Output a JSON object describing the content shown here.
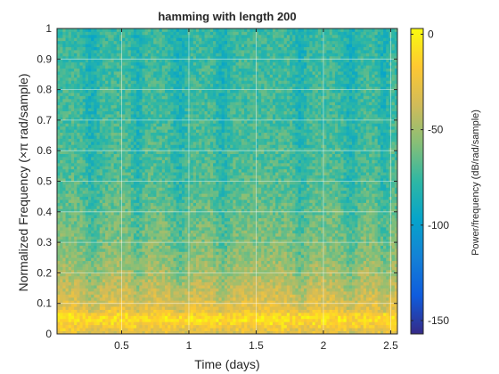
{
  "chart_data": {
    "type": "heatmap",
    "title": "hamming with length 200",
    "xlabel": "Time (days)",
    "ylabel": "Normalized Frequency  (×π rad/sample)",
    "xlim": [
      0.02,
      2.55
    ],
    "ylim": [
      0,
      1
    ],
    "x_ticks": [
      0.5,
      1,
      1.5,
      2,
      2.5
    ],
    "x_tick_labels": [
      "0.5",
      "1",
      "1.5",
      "2",
      "2.5"
    ],
    "y_ticks": [
      0,
      0.1,
      0.2,
      0.3,
      0.4,
      0.5,
      0.6,
      0.7,
      0.8,
      0.9,
      1
    ],
    "y_tick_labels": [
      "0",
      "0.1",
      "0.2",
      "0.3",
      "0.4",
      "0.5",
      "0.6",
      "0.7",
      "0.8",
      "0.9",
      "1"
    ],
    "grid": true,
    "colormap": "parula",
    "colormap_colors": [
      "#352a87",
      "#0f5cdd",
      "#1481d6",
      "#06a4ca",
      "#2eb7a4",
      "#87bf77",
      "#d1bb59",
      "#fec832",
      "#f9fb0e"
    ],
    "colorbar": {
      "label": "Power/frequency (dB/rad/sample)",
      "range": [
        -157,
        3
      ],
      "ticks": [
        0,
        -50,
        -100,
        -150
      ],
      "tick_labels": [
        "0",
        "-50",
        "-100",
        "-150"
      ]
    },
    "power_profile_db": {
      "frequency": [
        0,
        0.03,
        0.05,
        0.08,
        0.12,
        0.2,
        0.3,
        0.5,
        0.7,
        1.0
      ],
      "level": [
        -35,
        -18,
        -8,
        -25,
        -35,
        -48,
        -58,
        -68,
        -72,
        -75
      ]
    },
    "quiet_time_bands": [
      {
        "center": 0.28,
        "width": 0.06
      },
      {
        "center": 0.62,
        "width": 0.04
      },
      {
        "center": 0.93,
        "width": 0.06
      },
      {
        "center": 1.25,
        "width": 0.05
      },
      {
        "center": 1.83,
        "width": 0.05
      },
      {
        "center": 2.2,
        "width": 0.06
      },
      {
        "center": 2.45,
        "width": 0.04
      }
    ]
  }
}
